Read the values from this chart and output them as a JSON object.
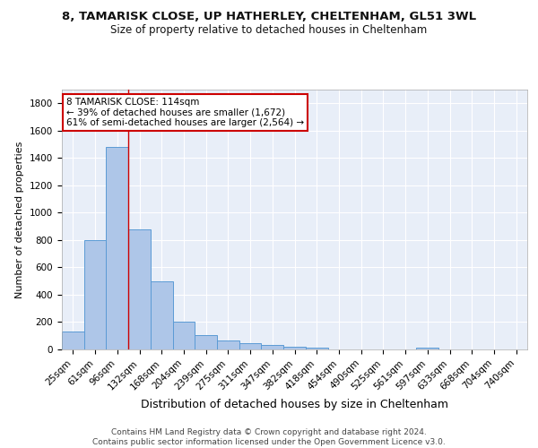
{
  "title1": "8, TAMARISK CLOSE, UP HATHERLEY, CHELTENHAM, GL51 3WL",
  "title2": "Size of property relative to detached houses in Cheltenham",
  "xlabel": "Distribution of detached houses by size in Cheltenham",
  "ylabel": "Number of detached properties",
  "bar_labels": [
    "25sqm",
    "61sqm",
    "96sqm",
    "132sqm",
    "168sqm",
    "204sqm",
    "239sqm",
    "275sqm",
    "311sqm",
    "347sqm",
    "382sqm",
    "418sqm",
    "454sqm",
    "490sqm",
    "525sqm",
    "561sqm",
    "597sqm",
    "633sqm",
    "668sqm",
    "704sqm",
    "740sqm"
  ],
  "bar_values": [
    130,
    800,
    1480,
    880,
    500,
    205,
    105,
    65,
    48,
    35,
    22,
    12,
    0,
    0,
    0,
    0,
    15,
    0,
    0,
    0,
    0
  ],
  "bar_color": "#aec6e8",
  "bar_edgecolor": "#5b9bd5",
  "annotation_text": "8 TAMARISK CLOSE: 114sqm\n← 39% of detached houses are smaller (1,672)\n61% of semi-detached houses are larger (2,564) →",
  "annotation_box_color": "#ffffff",
  "annotation_box_edgecolor": "#cc0000",
  "ylim": [
    0,
    1900
  ],
  "yticks": [
    0,
    200,
    400,
    600,
    800,
    1000,
    1200,
    1400,
    1600,
    1800
  ],
  "bg_color": "#e8eef8",
  "grid_color": "#ffffff",
  "footer": "Contains HM Land Registry data © Crown copyright and database right 2024.\nContains public sector information licensed under the Open Government Licence v3.0.",
  "title1_fontsize": 9.5,
  "title2_fontsize": 8.5,
  "xlabel_fontsize": 9,
  "ylabel_fontsize": 8,
  "tick_fontsize": 7.5,
  "footer_fontsize": 6.5,
  "ann_fontsize": 7.5
}
